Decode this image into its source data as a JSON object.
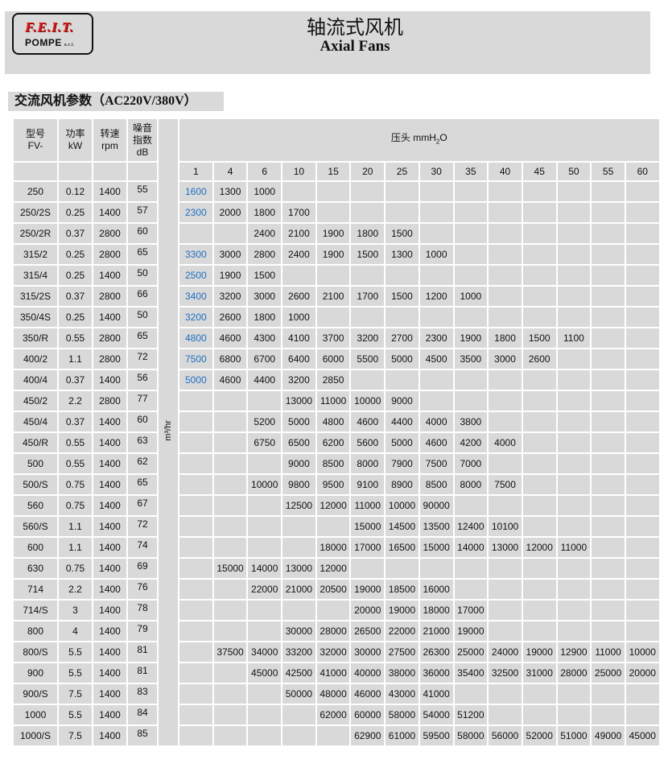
{
  "header": {
    "logo_top": "F.E.I.T.",
    "logo_bottom": "POMPE",
    "logo_suffix": "s.r.l.",
    "title_cn": "轴流式风机",
    "title_en": "Axial Fans"
  },
  "section_title": "交流风机参数（AC220V/380V）",
  "columns": {
    "model": [
      "型号",
      "FV-"
    ],
    "power": [
      "功率",
      "kW"
    ],
    "speed": [
      "转速",
      "rpm"
    ],
    "noise": [
      "噪音",
      "指数",
      "dB"
    ],
    "pressure_label": "压头 mmH",
    "pressure_sub": "2",
    "pressure_tail": "O",
    "flow_unit": "m³/hr"
  },
  "pressures": [
    "1",
    "4",
    "6",
    "10",
    "15",
    "20",
    "25",
    "30",
    "35",
    "40",
    "45",
    "50",
    "55",
    "60"
  ],
  "colors": {
    "band": "#d9d9d9",
    "first_col_flow": "#1e6fc0",
    "logo_red": "#e01b1b"
  },
  "rows": [
    {
      "model": "250",
      "kw": "0.12",
      "rpm": "1400",
      "db": "55",
      "flows": [
        "1600",
        "1300",
        "1000",
        "",
        "",
        "",
        "",
        "",
        "",
        "",
        "",
        "",
        "",
        ""
      ]
    },
    {
      "model": "250/2S",
      "kw": "0.25",
      "rpm": "1400",
      "db": "57",
      "flows": [
        "2300",
        "2000",
        "1800",
        "1700",
        "",
        "",
        "",
        "",
        "",
        "",
        "",
        "",
        "",
        ""
      ]
    },
    {
      "model": "250/2R",
      "kw": "0.37",
      "rpm": "2800",
      "db": "60",
      "flows": [
        "",
        "",
        "2400",
        "2100",
        "1900",
        "1800",
        "1500",
        "",
        "",
        "",
        "",
        "",
        "",
        ""
      ]
    },
    {
      "model": "315/2",
      "kw": "0.25",
      "rpm": "2800",
      "db": "65",
      "flows": [
        "3300",
        "3000",
        "2800",
        "2400",
        "1900",
        "1500",
        "1300",
        "1000",
        "",
        "",
        "",
        "",
        "",
        ""
      ]
    },
    {
      "model": "315/4",
      "kw": "0.25",
      "rpm": "1400",
      "db": "50",
      "flows": [
        "2500",
        "1900",
        "1500",
        "",
        "",
        "",
        "",
        "",
        "",
        "",
        "",
        "",
        "",
        ""
      ]
    },
    {
      "model": "315/2S",
      "kw": "0.37",
      "rpm": "2800",
      "db": "66",
      "flows": [
        "3400",
        "3200",
        "3000",
        "2600",
        "2100",
        "1700",
        "1500",
        "1200",
        "1000",
        "",
        "",
        "",
        "",
        ""
      ]
    },
    {
      "model": "350/4S",
      "kw": "0.25",
      "rpm": "1400",
      "db": "50",
      "flows": [
        "3200",
        "2600",
        "1800",
        "1000",
        "",
        "",
        "",
        "",
        "",
        "",
        "",
        "",
        "",
        ""
      ]
    },
    {
      "model": "350/R",
      "kw": "0.55",
      "rpm": "2800",
      "db": "65",
      "flows": [
        "4800",
        "4600",
        "4300",
        "4100",
        "3700",
        "3200",
        "2700",
        "2300",
        "1900",
        "1800",
        "1500",
        "1100",
        "",
        ""
      ]
    },
    {
      "model": "400/2",
      "kw": "1.1",
      "rpm": "2800",
      "db": "72",
      "flows": [
        "7500",
        "6800",
        "6700",
        "6400",
        "6000",
        "5500",
        "5000",
        "4500",
        "3500",
        "3000",
        "2600",
        "",
        "",
        ""
      ]
    },
    {
      "model": "400/4",
      "kw": "0.37",
      "rpm": "1400",
      "db": "56",
      "flows": [
        "5000",
        "4600",
        "4400",
        "3200",
        "2850",
        "",
        "",
        "",
        "",
        "",
        "",
        "",
        "",
        ""
      ]
    },
    {
      "model": "450/2",
      "kw": "2.2",
      "rpm": "2800",
      "db": "77",
      "flows": [
        "",
        "",
        "",
        "13000",
        "11000",
        "10000",
        "9000",
        "",
        "",
        "",
        "",
        "",
        "",
        ""
      ]
    },
    {
      "model": "450/4",
      "kw": "0.37",
      "rpm": "1400",
      "db": "60",
      "flows": [
        "",
        "",
        "5200",
        "5000",
        "4800",
        "4600",
        "4400",
        "4000",
        "3800",
        "",
        "",
        "",
        "",
        ""
      ]
    },
    {
      "model": "450/R",
      "kw": "0.55",
      "rpm": "1400",
      "db": "63",
      "flows": [
        "",
        "",
        "6750",
        "6500",
        "6200",
        "5600",
        "5000",
        "4600",
        "4200",
        "4000",
        "",
        "",
        "",
        ""
      ]
    },
    {
      "model": "500",
      "kw": "0.55",
      "rpm": "1400",
      "db": "62",
      "flows": [
        "",
        "",
        "",
        "9000",
        "8500",
        "8000",
        "7900",
        "7500",
        "7000",
        "",
        "",
        "",
        "",
        ""
      ]
    },
    {
      "model": "500/S",
      "kw": "0.75",
      "rpm": "1400",
      "db": "65",
      "flows": [
        "",
        "",
        "10000",
        "9800",
        "9500",
        "9100",
        "8900",
        "8500",
        "8000",
        "7500",
        "",
        "",
        "",
        ""
      ]
    },
    {
      "model": "560",
      "kw": "0.75",
      "rpm": "1400",
      "db": "67",
      "flows": [
        "",
        "",
        "",
        "12500",
        "12000",
        "11000",
        "10000",
        "90000",
        "",
        "",
        "",
        "",
        "",
        ""
      ]
    },
    {
      "model": "560/S",
      "kw": "1.1",
      "rpm": "1400",
      "db": "72",
      "flows": [
        "",
        "",
        "",
        "",
        "",
        "15000",
        "14500",
        "13500",
        "12400",
        "10100",
        "",
        "",
        "",
        ""
      ]
    },
    {
      "model": "600",
      "kw": "1.1",
      "rpm": "1400",
      "db": "74",
      "flows": [
        "",
        "",
        "",
        "",
        "18000",
        "17000",
        "16500",
        "15000",
        "14000",
        "13000",
        "12000",
        "11000",
        "",
        ""
      ]
    },
    {
      "model": "630",
      "kw": "0.75",
      "rpm": "1400",
      "db": "69",
      "flows": [
        "",
        "15000",
        "14000",
        "13000",
        "12000",
        "",
        "",
        "",
        "",
        "",
        "",
        "",
        "",
        ""
      ]
    },
    {
      "model": "714",
      "kw": "2.2",
      "rpm": "1400",
      "db": "76",
      "flows": [
        "",
        "",
        "22000",
        "21000",
        "20500",
        "19000",
        "18500",
        "16000",
        "",
        "",
        "",
        "",
        "",
        ""
      ]
    },
    {
      "model": "714/S",
      "kw": "3",
      "rpm": "1400",
      "db": "78",
      "flows": [
        "",
        "",
        "",
        "",
        "",
        "20000",
        "19000",
        "18000",
        "17000",
        "",
        "",
        "",
        "",
        ""
      ]
    },
    {
      "model": "800",
      "kw": "4",
      "rpm": "1400",
      "db": "79",
      "flows": [
        "",
        "",
        "",
        "30000",
        "28000",
        "26500",
        "22000",
        "21000",
        "19000",
        "",
        "",
        "",
        "",
        ""
      ]
    },
    {
      "model": "800/S",
      "kw": "5.5",
      "rpm": "1400",
      "db": "81",
      "flows": [
        "",
        "37500",
        "34000",
        "33200",
        "32000",
        "30000",
        "27500",
        "26300",
        "25000",
        "24000",
        "19000",
        "12900",
        "11000",
        "10000"
      ]
    },
    {
      "model": "900",
      "kw": "5.5",
      "rpm": "1400",
      "db": "81",
      "flows": [
        "",
        "",
        "45000",
        "42500",
        "41000",
        "40000",
        "38000",
        "36000",
        "35400",
        "32500",
        "31000",
        "28000",
        "25000",
        "20000"
      ]
    },
    {
      "model": "900/S",
      "kw": "7.5",
      "rpm": "1400",
      "db": "83",
      "flows": [
        "",
        "",
        "",
        "50000",
        "48000",
        "46000",
        "43000",
        "41000",
        "",
        "",
        "",
        "",
        "",
        ""
      ]
    },
    {
      "model": "1000",
      "kw": "5.5",
      "rpm": "1400",
      "db": "84",
      "flows": [
        "",
        "",
        "",
        "",
        "62000",
        "60000",
        "58000",
        "54000",
        "51200",
        "",
        "",
        "",
        "",
        ""
      ]
    },
    {
      "model": "1000/S",
      "kw": "7.5",
      "rpm": "1400",
      "db": "85",
      "flows": [
        "",
        "",
        "",
        "",
        "",
        "62900",
        "61000",
        "59500",
        "58000",
        "56000",
        "52000",
        "51000",
        "49000",
        "45000"
      ]
    }
  ]
}
